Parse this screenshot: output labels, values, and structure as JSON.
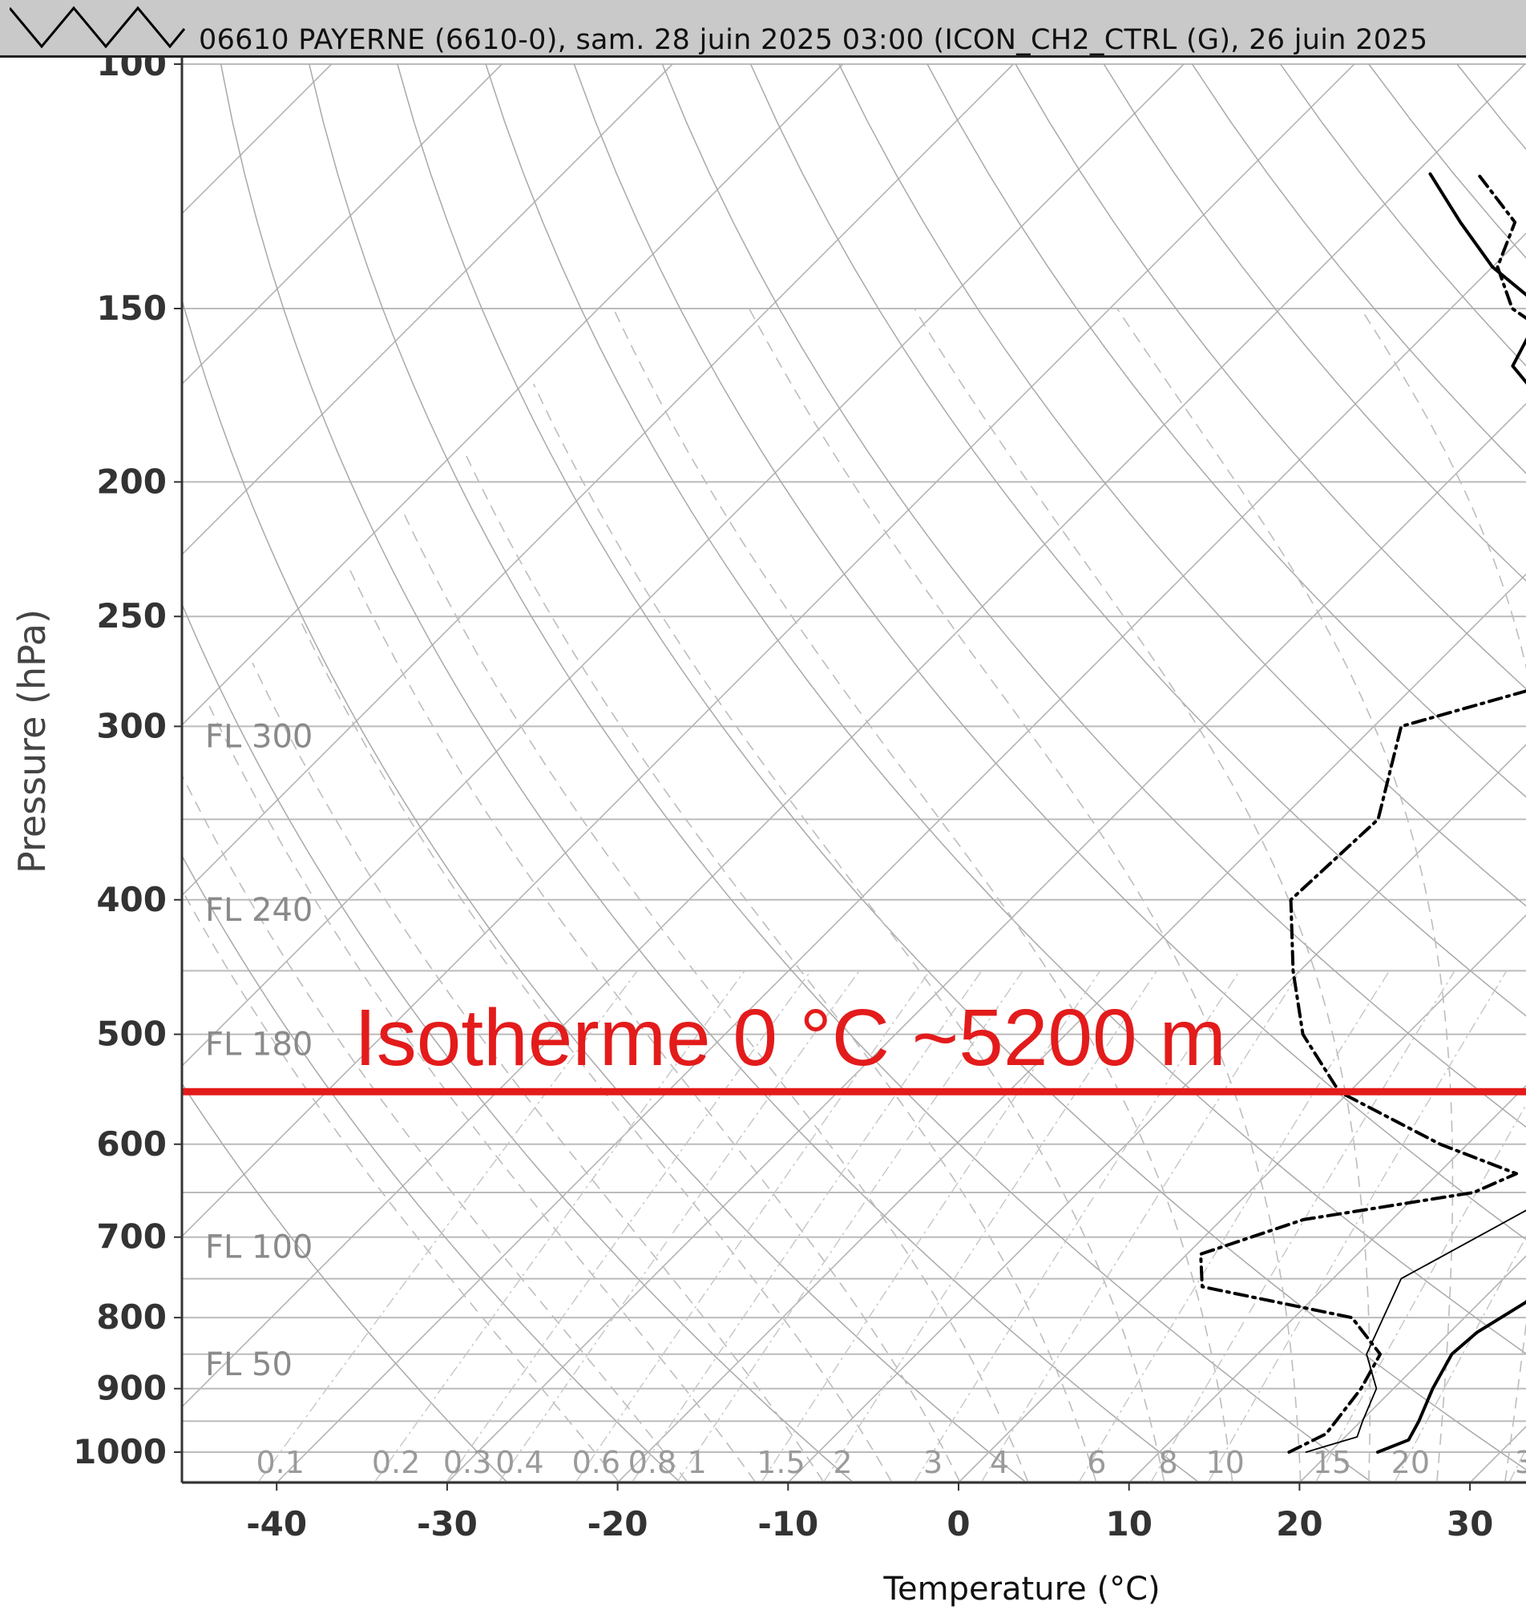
{
  "header": {
    "title": "06610 PAYERNE (6610-0), sam. 28 juin 2025 03:00 (ICON_CH2_CTRL (G), 26 juin 2025"
  },
  "annotation": {
    "text": "Isotherme 0 °C ~5200 m",
    "color": "#e31b1b"
  },
  "chart_data": {
    "type": "skew-t",
    "xlabel": "Temperature (°C)",
    "ylabel": "Pressure (hPa)",
    "x_ticks": [
      -40,
      -30,
      -20,
      -10,
      0,
      10,
      20,
      30
    ],
    "y_ticks": [
      100,
      150,
      200,
      250,
      300,
      400,
      500,
      600,
      700,
      800,
      900,
      1000
    ],
    "y_scale": "log",
    "xlim": [
      -45.5,
      33
    ],
    "ylim": [
      1050,
      100
    ],
    "flight_levels": [
      {
        "label": "FL 300",
        "p": 300
      },
      {
        "label": "FL 240",
        "p": 400
      },
      {
        "label": "FL 180",
        "p": 500
      },
      {
        "label": "FL 100",
        "p": 700
      },
      {
        "label": "FL 50",
        "p": 850
      }
    ],
    "mixing_ratio_labels": [
      "0.1",
      "0.2",
      "0.3",
      "0.4",
      "0.6",
      "0.8",
      "1",
      "1.5",
      "2",
      "3",
      "4",
      "6",
      "8",
      "10",
      "15",
      "20",
      "3"
    ],
    "freezing_level_p": 550,
    "series": [
      {
        "kind": "temperature",
        "style": "solid-thick",
        "points": [
          [
            22.8,
            1000
          ],
          [
            23.9,
            980
          ],
          [
            23.4,
            950
          ],
          [
            22.3,
            900
          ],
          [
            21.4,
            850
          ],
          [
            21.6,
            820
          ],
          [
            22.7,
            780
          ],
          [
            22.4,
            700
          ],
          [
            22.0,
            600
          ],
          [
            22.4,
            550
          ],
          [
            21.1,
            500
          ],
          [
            17.6,
            450
          ],
          [
            13.6,
            400
          ],
          [
            7.5,
            350
          ],
          [
            1.3,
            300
          ],
          [
            -5.4,
            275
          ],
          [
            -11.8,
            250
          ],
          [
            -18.3,
            225
          ],
          [
            -23.4,
            200
          ],
          [
            -26.2,
            187
          ],
          [
            -29.2,
            175
          ],
          [
            -33.0,
            165
          ],
          [
            -34.6,
            150
          ],
          [
            -40.0,
            140
          ],
          [
            -44.5,
            130
          ],
          [
            -49.1,
            120
          ]
        ]
      },
      {
        "kind": "parcel",
        "style": "solid-thin",
        "points": [
          [
            18.6,
            1000
          ],
          [
            20.7,
            975
          ],
          [
            20.1,
            950
          ],
          [
            19.0,
            900
          ],
          [
            16.4,
            850
          ],
          [
            14.0,
            750
          ],
          [
            18.2,
            650
          ],
          [
            11.5,
            550
          ],
          [
            5.9,
            450
          ],
          [
            -2.1,
            350
          ],
          [
            -11.0,
            270
          ]
        ]
      },
      {
        "kind": "dewpoint",
        "style": "dash-dot-thick",
        "points": [
          [
            17.6,
            1000
          ],
          [
            18.7,
            970
          ],
          [
            18.1,
            900
          ],
          [
            17.2,
            850
          ],
          [
            13.4,
            800
          ],
          [
            2.8,
            760
          ],
          [
            0.8,
            720
          ],
          [
            4.8,
            680
          ],
          [
            13.2,
            650
          ],
          [
            14.6,
            630
          ],
          [
            8.4,
            600
          ],
          [
            -0.6,
            550
          ],
          [
            -6.1,
            500
          ],
          [
            -10.4,
            450
          ],
          [
            -14.7,
            400
          ],
          [
            -14.3,
            350
          ],
          [
            -18.4,
            300
          ],
          [
            -10.6,
            275
          ],
          [
            -13.5,
            250
          ],
          [
            -18.8,
            225
          ],
          [
            -22.8,
            200
          ],
          [
            -28.9,
            180
          ],
          [
            -30.8,
            160
          ],
          [
            -36.4,
            150
          ],
          [
            -39.7,
            140
          ],
          [
            -41.3,
            130
          ],
          [
            -46.3,
            120
          ]
        ]
      }
    ]
  }
}
